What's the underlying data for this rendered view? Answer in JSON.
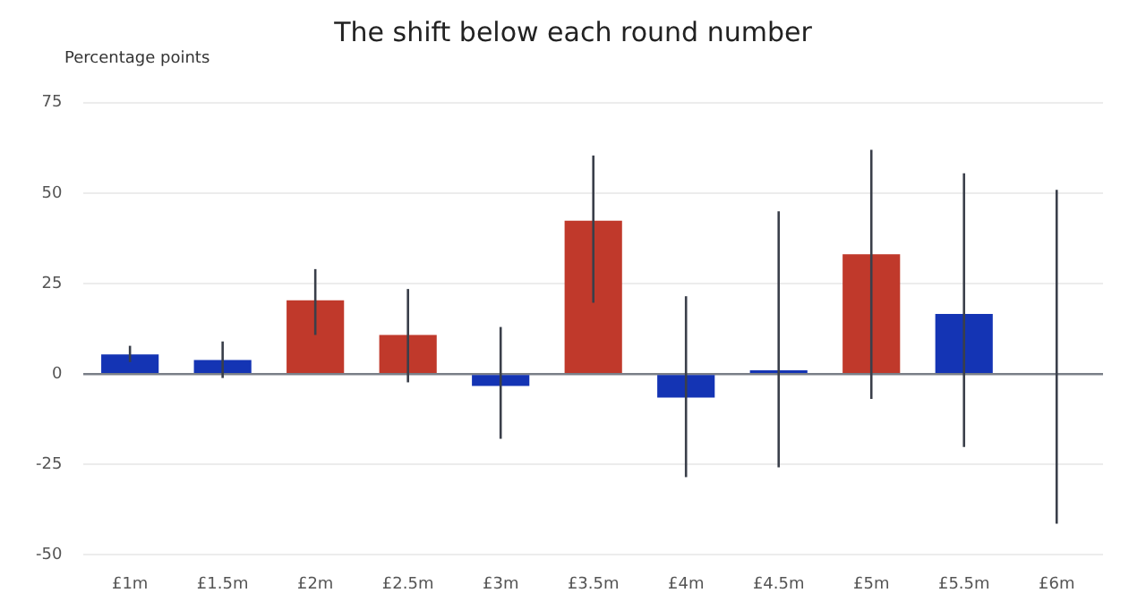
{
  "chart_data": {
    "type": "bar",
    "title": "The shift below each round number",
    "ylabel": "Percentage points",
    "categories": [
      "£1m",
      "£1.5m",
      "£2m",
      "£2.5m",
      "£3m",
      "£3.5m",
      "£4m",
      "£4.5m",
      "£5m",
      "£5.5m",
      "£6m"
    ],
    "values": [
      5.4,
      3.9,
      20.4,
      10.8,
      -3.3,
      42.4,
      -6.5,
      1.0,
      33.1,
      16.6,
      0
    ],
    "colors": [
      "#1434b4",
      "#1434b4",
      "#c0392b",
      "#c0392b",
      "#1434b4",
      "#c0392b",
      "#1434b4",
      "#1434b4",
      "#c0392b",
      "#1434b4",
      "#1434b4"
    ],
    "errors": [
      [
        3.3,
        7.8
      ],
      [
        -1.1,
        9.0
      ],
      [
        10.8,
        29.0
      ],
      [
        -2.3,
        23.5
      ],
      [
        -17.9,
        13.0
      ],
      [
        19.7,
        60.4
      ],
      [
        -28.5,
        21.5
      ],
      [
        -25.8,
        45.0
      ],
      [
        -6.9,
        62.0
      ],
      [
        -20.2,
        55.5
      ],
      [
        -41.4,
        50.9
      ]
    ],
    "ylim": [
      -50,
      75
    ],
    "yticks": [
      -50,
      -25,
      0,
      25,
      50,
      75
    ],
    "grid": "y",
    "legend": false
  }
}
